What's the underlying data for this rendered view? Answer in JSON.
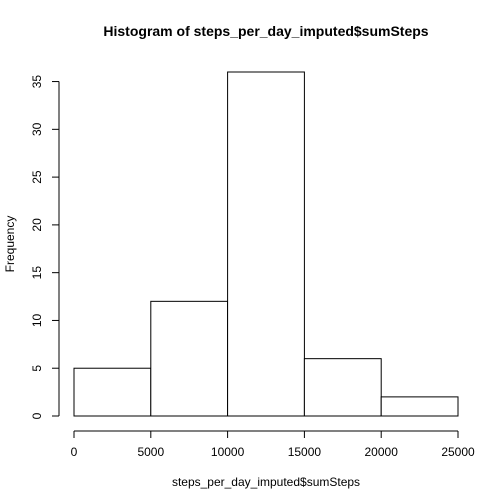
{
  "chart_data": {
    "type": "bar",
    "title": "Histogram of steps_per_day_imputed$sumSteps",
    "xlabel": "steps_per_day_imputed$sumSteps",
    "ylabel": "Frequency",
    "bins": [
      {
        "from": 0,
        "to": 5000,
        "count": 5
      },
      {
        "from": 5000,
        "to": 10000,
        "count": 12
      },
      {
        "from": 10000,
        "to": 15000,
        "count": 36
      },
      {
        "from": 15000,
        "to": 20000,
        "count": 6
      },
      {
        "from": 20000,
        "to": 25000,
        "count": 2
      }
    ],
    "xlim": [
      0,
      25000
    ],
    "ylim": [
      0,
      36
    ],
    "xticks": [
      0,
      5000,
      10000,
      15000,
      20000,
      25000
    ],
    "yticks": [
      0,
      5,
      10,
      15,
      20,
      25,
      30,
      35
    ],
    "grid": false,
    "fill_color": "#ffffff",
    "stroke_color": "#000000"
  }
}
